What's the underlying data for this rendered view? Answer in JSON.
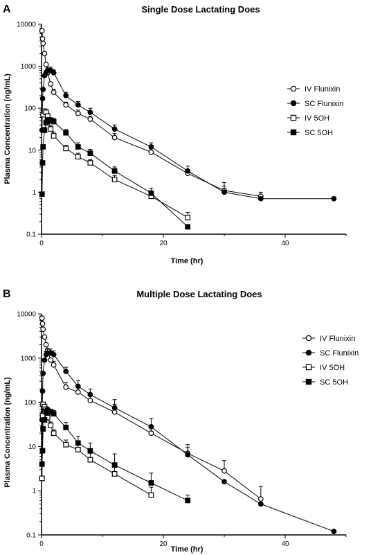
{
  "chart_data": [
    {
      "type": "scatter",
      "panel": "A",
      "title": "Single Dose Lactating Does",
      "xlabel": "Time (hr)",
      "ylabel": "Plasma Concentration (ng/mL)",
      "xlim": [
        0,
        50
      ],
      "ylim": [
        0.1,
        10000
      ],
      "yscale": "log",
      "x_ticks": [
        0,
        20,
        40
      ],
      "y_ticks": [
        0.1,
        1,
        10,
        100,
        1000,
        10000
      ],
      "y_tick_labels": [
        "0.1",
        "1",
        "10",
        "100",
        "1000",
        "10000"
      ],
      "legend_position": "right",
      "series": [
        {
          "name": "IV Flunixin",
          "marker": "open-circle",
          "x": [
            0.08,
            0.17,
            0.25,
            0.5,
            0.75,
            1,
            1.5,
            2,
            4,
            6,
            8,
            12,
            18,
            24,
            30,
            36
          ],
          "y": [
            7000,
            4500,
            3500,
            2000,
            1100,
            700,
            380,
            240,
            120,
            75,
            55,
            20,
            9,
            2.8,
            1.1,
            0.8
          ],
          "err": [
            0,
            0,
            0,
            0,
            0,
            0,
            0,
            40,
            20,
            15,
            10,
            5,
            2,
            0.6,
            0.3,
            0.2
          ]
        },
        {
          "name": "SC Flunixin",
          "marker": "filled-circle",
          "x": [
            0.08,
            0.17,
            0.25,
            0.5,
            0.75,
            1,
            1.5,
            2,
            4,
            6,
            8,
            12,
            18,
            24,
            30,
            36,
            48
          ],
          "y": [
            30,
            170,
            280,
            600,
            700,
            800,
            800,
            700,
            200,
            120,
            80,
            32,
            12,
            3.2,
            1,
            0.7,
            0.7
          ],
          "err": [
            0,
            0,
            0,
            0,
            100,
            150,
            150,
            120,
            40,
            25,
            20,
            8,
            3,
            1,
            0.7,
            0,
            0
          ]
        },
        {
          "name": "IV 5OH",
          "marker": "open-square",
          "x": [
            0.25,
            0.5,
            0.75,
            1,
            1.5,
            2,
            4,
            6,
            8,
            12,
            18,
            24
          ],
          "y": [
            70,
            85,
            80,
            65,
            32,
            22,
            11,
            7,
            5,
            2,
            0.8,
            0.25
          ],
          "err": [
            0,
            0,
            10,
            10,
            6,
            5,
            2,
            1.5,
            1,
            0.5,
            0.2,
            0.08
          ]
        },
        {
          "name": "SC 5OH",
          "marker": "filled-square",
          "x": [
            0.08,
            0.17,
            0.25,
            0.5,
            0.75,
            1,
            1.5,
            2,
            4,
            6,
            8,
            12,
            18,
            24
          ],
          "y": [
            0.9,
            5,
            12,
            30,
            45,
            50,
            50,
            48,
            26,
            12,
            8.5,
            3.2,
            0.95,
            0.15
          ],
          "err": [
            0,
            0,
            0,
            5,
            8,
            10,
            10,
            10,
            5,
            3,
            2,
            0.8,
            0.3,
            0
          ]
        }
      ]
    },
    {
      "type": "scatter",
      "panel": "B",
      "title": "Multiple Dose Lactating Does",
      "xlabel": "Time (hr)",
      "ylabel": "Plasma Concentration (ng/mL)",
      "xlim": [
        0,
        50
      ],
      "ylim": [
        0.1,
        10000
      ],
      "yscale": "log",
      "x_ticks": [
        0,
        20,
        40
      ],
      "y_ticks": [
        0.1,
        1,
        10,
        100,
        1000,
        10000
      ],
      "y_tick_labels": [
        "0.1",
        "1",
        "10",
        "100",
        "1000",
        "10000"
      ],
      "legend_position": "right",
      "series": [
        {
          "name": "IV Flunixin",
          "marker": "open-circle",
          "x": [
            0.08,
            0.17,
            0.25,
            0.5,
            0.75,
            1,
            1.5,
            2,
            4,
            6,
            8,
            12,
            18,
            24,
            30,
            36
          ],
          "y": [
            8000,
            6000,
            4500,
            3000,
            2000,
            1500,
            900,
            700,
            220,
            170,
            110,
            60,
            20,
            7,
            2.8,
            0.65
          ],
          "err": [
            0,
            0,
            0,
            0,
            0,
            0,
            0,
            150,
            60,
            50,
            40,
            30,
            10,
            4,
            2,
            0.6
          ]
        },
        {
          "name": "SC Flunixin",
          "marker": "filled-circle",
          "x": [
            0.08,
            0.17,
            0.25,
            0.5,
            0.75,
            1,
            1.5,
            2,
            4,
            6,
            8,
            12,
            18,
            24,
            30,
            36,
            48
          ],
          "y": [
            40,
            180,
            450,
            900,
            1200,
            1300,
            1300,
            1200,
            500,
            230,
            150,
            75,
            28,
            6.5,
            1.6,
            0.5,
            0.12
          ],
          "err": [
            0,
            0,
            0,
            0,
            200,
            300,
            300,
            250,
            120,
            80,
            50,
            40,
            15,
            3,
            0,
            0,
            0
          ]
        },
        {
          "name": "IV 5OH",
          "marker": "open-square",
          "x": [
            0.08,
            0.17,
            0.25,
            0.5,
            0.75,
            1,
            1.5,
            2,
            4,
            6,
            8,
            12,
            18
          ],
          "y": [
            1.9,
            50,
            90,
            80,
            70,
            45,
            30,
            20,
            11,
            8.5,
            5,
            2.4,
            0.8
          ],
          "err": [
            0,
            0,
            0,
            0,
            10,
            8,
            6,
            4,
            3,
            2.5,
            2,
            1,
            0.4
          ]
        },
        {
          "name": "SC 5OH",
          "marker": "filled-square",
          "x": [
            0.08,
            0.17,
            0.25,
            0.5,
            0.75,
            1,
            1.5,
            2,
            4,
            6,
            8,
            12,
            18,
            24
          ],
          "y": [
            4,
            8,
            25,
            40,
            60,
            65,
            60,
            55,
            27,
            12,
            8,
            3.8,
            1.5,
            0.6
          ],
          "err": [
            0,
            0,
            0,
            0,
            10,
            10,
            10,
            10,
            8,
            5,
            4,
            3,
            1,
            0.2
          ]
        }
      ]
    }
  ]
}
